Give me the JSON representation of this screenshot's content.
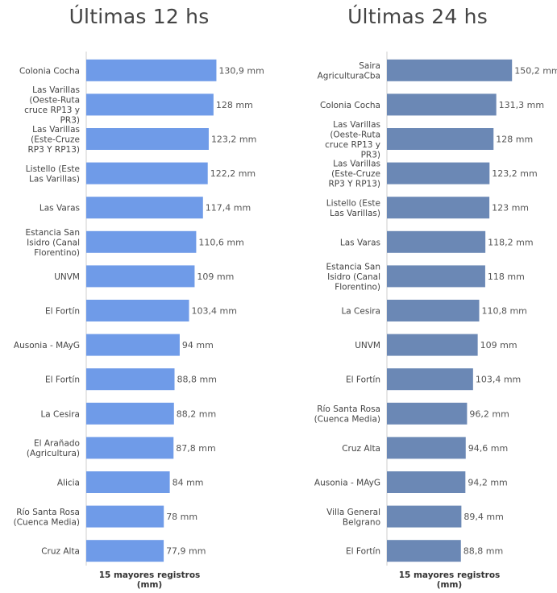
{
  "chart_data": [
    {
      "type": "bar",
      "orientation": "horizontal",
      "title": "Últimas 12 hs",
      "xlabel": "15 mayores registros (mm)",
      "ylabel": "",
      "color": "#6f9be8",
      "xlim": [
        0,
        150
      ],
      "categories": [
        "Colonia Cocha",
        "Las Varillas (Oeste-Ruta cruce RP13 y PR3)",
        "Las Varillas (Este-Cruze RP3 Y RP13)",
        "Listello (Este Las Varillas)",
        "Las Varas",
        "Estancia San Isidro (Canal Florentino)",
        "UNVM",
        "El Fortín",
        "Ausonia - MAyG",
        "El Fortín",
        "La Cesira",
        "El Arañado (Agricultura)",
        "Alicia",
        "Río Santa Rosa (Cuenca Media)",
        "Cruz Alta"
      ],
      "values": [
        130.9,
        128,
        123.2,
        122.2,
        117.4,
        110.6,
        109,
        103.4,
        94,
        88.8,
        88.2,
        87.8,
        84,
        78,
        77.9
      ],
      "value_labels": [
        "130,9 mm",
        "128 mm",
        "123,2 mm",
        "122,2 mm",
        "117,4 mm",
        "110,6 mm",
        "109 mm",
        "103,4 mm",
        "94 mm",
        "88,8 mm",
        "88,2 mm",
        "87,8 mm",
        "84 mm",
        "78 mm",
        "77,9 mm"
      ]
    },
    {
      "type": "bar",
      "orientation": "horizontal",
      "title": "Últimas 24 hs",
      "xlabel": "15 mayores registros (mm)",
      "ylabel": "",
      "color": "#6b88b5",
      "xlim": [
        0,
        150
      ],
      "categories": [
        "Saira AgriculturaCba",
        "Colonia Cocha",
        "Las Varillas (Oeste-Ruta cruce RP13 y PR3)",
        "Las Varillas (Este-Cruze RP3 Y RP13)",
        "Listello (Este Las Varillas)",
        "Las Varas",
        "Estancia San Isidro (Canal Florentino)",
        "La Cesira",
        "UNVM",
        "El Fortín",
        "Río Santa Rosa (Cuenca Media)",
        "Cruz Alta",
        "Ausonia - MAyG",
        "Villa General Belgrano",
        "El Fortín"
      ],
      "values": [
        150.2,
        131.3,
        128,
        123.2,
        123,
        118.2,
        118,
        110.8,
        109,
        103.4,
        96.2,
        94.6,
        94.2,
        89.4,
        88.8
      ],
      "value_labels": [
        "150,2 mm",
        "131,3 mm",
        "128 mm",
        "123,2 mm",
        "123 mm",
        "118,2 mm",
        "118 mm",
        "110,8 mm",
        "109 mm",
        "103,4 mm",
        "96,2 mm",
        "94,6 mm",
        "94,2 mm",
        "89,4 mm",
        "88,8 mm"
      ]
    }
  ]
}
